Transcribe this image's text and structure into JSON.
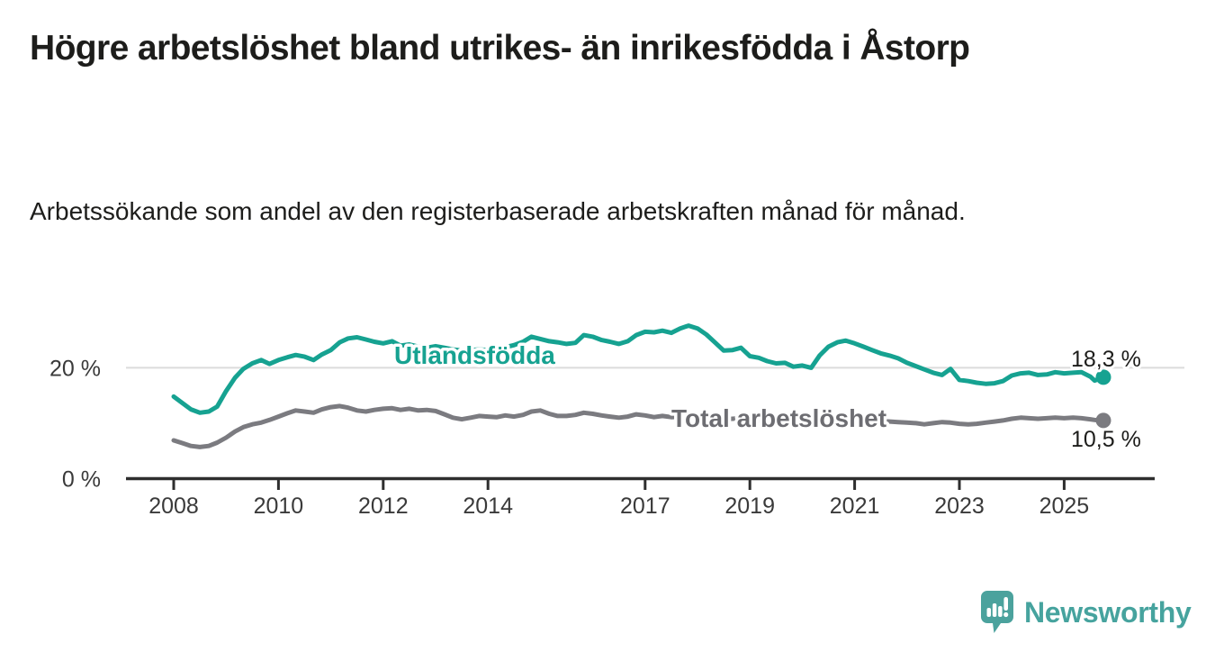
{
  "header": {
    "title": "Högre arbetslöshet bland utrikes- än inrikesfödda i Åstorp",
    "subtitle": "Arbetssökande som andel av den registerbaserade arbetskraften månad för månad."
  },
  "footer": {
    "brand": "Newsworthy",
    "logo_icon": "bar-chart-speech-bubble-icon"
  },
  "colors": {
    "teal_line": "#16a291",
    "gray_line": "#7b7b80",
    "gray_label": "#6d6d72",
    "gridline": "#dcdcdc",
    "axis": "#2e2e2e",
    "text": "#1d1d1b",
    "logo_teal": "#4ba29d"
  },
  "chart_data": {
    "type": "line",
    "unit": "%",
    "grid": "y-only-at-20",
    "legend_position": "inline-labels-on-lines",
    "ylim": [
      0,
      29
    ],
    "y_gridlines": [
      20
    ],
    "y_ticks": [
      {
        "value": 0,
        "label": "0 %"
      },
      {
        "value": 20,
        "label": "20 %"
      }
    ],
    "x_ticks": [
      2008,
      2010,
      2012,
      2014,
      2017,
      2019,
      2021,
      2023,
      2025
    ],
    "x": [
      2008.0,
      2008.17,
      2008.33,
      2008.5,
      2008.67,
      2008.83,
      2009.0,
      2009.17,
      2009.33,
      2009.5,
      2009.67,
      2009.83,
      2010.0,
      2010.17,
      2010.33,
      2010.5,
      2010.67,
      2010.83,
      2011.0,
      2011.17,
      2011.33,
      2011.5,
      2011.67,
      2011.83,
      2012.0,
      2012.17,
      2012.33,
      2012.5,
      2012.67,
      2012.83,
      2013.0,
      2013.17,
      2013.33,
      2013.5,
      2013.67,
      2013.83,
      2014.0,
      2014.17,
      2014.33,
      2014.5,
      2014.67,
      2014.83,
      2015.0,
      2015.17,
      2015.33,
      2015.5,
      2015.67,
      2015.83,
      2016.0,
      2016.17,
      2016.33,
      2016.5,
      2016.67,
      2016.83,
      2017.0,
      2017.17,
      2017.33,
      2017.5,
      2017.67,
      2017.83,
      2018.0,
      2018.17,
      2018.33,
      2018.5,
      2018.67,
      2018.83,
      2019.0,
      2019.17,
      2019.33,
      2019.5,
      2019.67,
      2019.83,
      2020.0,
      2020.17,
      2020.33,
      2020.5,
      2020.67,
      2020.83,
      2021.0,
      2021.17,
      2021.33,
      2021.5,
      2021.67,
      2021.83,
      2022.0,
      2022.17,
      2022.33,
      2022.5,
      2022.67,
      2022.83,
      2023.0,
      2023.17,
      2023.33,
      2023.5,
      2023.67,
      2023.83,
      2024.0,
      2024.17,
      2024.33,
      2024.5,
      2024.67,
      2024.83,
      2025.0,
      2025.17,
      2025.33,
      2025.5,
      2025.58,
      2025.67,
      2025.75
    ],
    "series": [
      {
        "name": "Utlandsfödda",
        "color": "#16a291",
        "label_color": "#16a291",
        "end_label": "18,3 %",
        "values": [
          14.8,
          13.6,
          12.5,
          11.9,
          12.1,
          13.0,
          15.8,
          18.2,
          19.8,
          20.8,
          21.4,
          20.7,
          21.4,
          21.9,
          22.3,
          22.0,
          21.4,
          22.4,
          23.2,
          24.6,
          25.3,
          25.5,
          25.1,
          24.7,
          24.4,
          24.8,
          24.0,
          24.2,
          23.8,
          23.6,
          23.9,
          23.6,
          23.3,
          23.1,
          23.2,
          23.3,
          23.2,
          23.4,
          23.7,
          24.1,
          24.7,
          25.6,
          25.2,
          24.8,
          24.6,
          24.3,
          24.5,
          25.9,
          25.6,
          25.0,
          24.7,
          24.3,
          24.8,
          25.9,
          26.5,
          26.4,
          26.7,
          26.3,
          27.1,
          27.6,
          27.1,
          26.0,
          24.6,
          23.1,
          23.2,
          23.6,
          22.1,
          21.8,
          21.2,
          20.8,
          20.9,
          20.2,
          20.4,
          20.0,
          22.2,
          23.8,
          24.6,
          24.9,
          24.4,
          23.8,
          23.2,
          22.6,
          22.2,
          21.7,
          20.9,
          20.3,
          19.7,
          19.1,
          18.7,
          19.8,
          17.8,
          17.6,
          17.3,
          17.1,
          17.2,
          17.6,
          18.6,
          19.0,
          19.1,
          18.7,
          18.8,
          19.2,
          19.0,
          19.1,
          19.2,
          18.4,
          17.7,
          18.0,
          18.3
        ]
      },
      {
        "name": "Total arbetslöshet",
        "color": "#7b7b80",
        "label_color": "#6d6d72",
        "end_label": "10,5 %",
        "values": [
          6.9,
          6.4,
          5.9,
          5.7,
          5.9,
          6.5,
          7.4,
          8.5,
          9.3,
          9.8,
          10.1,
          10.6,
          11.2,
          11.8,
          12.3,
          12.1,
          11.9,
          12.5,
          12.9,
          13.1,
          12.8,
          12.3,
          12.1,
          12.4,
          12.6,
          12.7,
          12.4,
          12.6,
          12.3,
          12.4,
          12.2,
          11.6,
          11.0,
          10.7,
          11.0,
          11.3,
          11.2,
          11.1,
          11.4,
          11.2,
          11.5,
          12.1,
          12.3,
          11.7,
          11.3,
          11.3,
          11.5,
          11.9,
          11.7,
          11.4,
          11.2,
          11.0,
          11.2,
          11.6,
          11.4,
          11.1,
          11.3,
          11.1,
          11.2,
          11.4,
          11.2,
          11.0,
          10.8,
          10.7,
          10.8,
          10.9,
          10.7,
          10.5,
          10.4,
          10.3,
          10.4,
          10.6,
          10.7,
          10.9,
          11.1,
          11.3,
          11.2,
          11.1,
          11.0,
          10.8,
          10.6,
          10.4,
          10.3,
          10.2,
          10.1,
          10.0,
          9.8,
          10.0,
          10.2,
          10.1,
          9.9,
          9.8,
          9.9,
          10.1,
          10.3,
          10.5,
          10.8,
          11.0,
          10.9,
          10.8,
          10.9,
          11.0,
          10.9,
          11.0,
          10.9,
          10.7,
          10.6,
          10.5,
          10.5
        ]
      }
    ]
  }
}
